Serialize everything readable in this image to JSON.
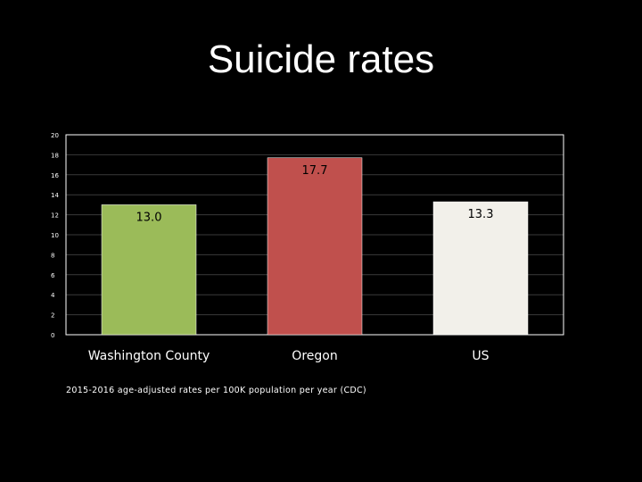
{
  "slide": {
    "title": "Suicide rates",
    "footnote": "2015-2016 age-adjusted rates per 100K population per year (CDC)"
  },
  "colors": {
    "background": "#000000",
    "plot_border": "#ffffff",
    "gridline": "#3a3a3a",
    "bars": [
      "#9bbb59",
      "#c0504d",
      "#f2f0ea"
    ]
  },
  "chart_data": {
    "type": "bar",
    "categories": [
      "Washington County",
      "Oregon",
      "US"
    ],
    "values": [
      13.0,
      17.7,
      13.3
    ],
    "data_labels": [
      "13.0",
      "17.7",
      "13.3"
    ],
    "title": "",
    "xlabel": "",
    "ylabel": "",
    "ylim": [
      0,
      20
    ],
    "yticks": [
      0,
      2,
      4,
      6,
      8,
      10,
      12,
      14,
      16,
      18,
      20
    ],
    "grid": true,
    "legend": "none"
  }
}
